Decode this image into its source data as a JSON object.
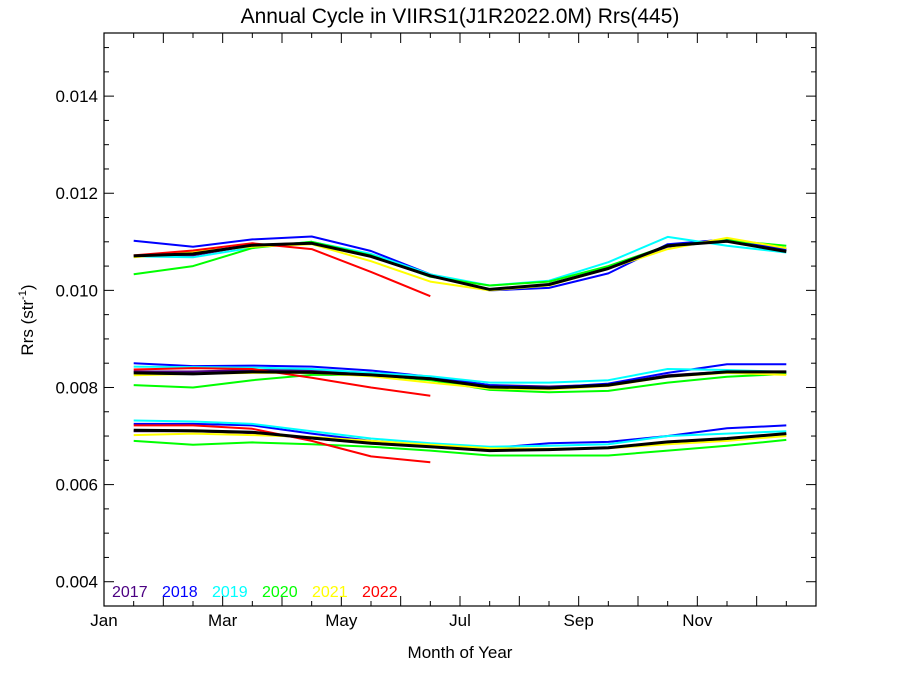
{
  "chart_data": {
    "type": "line",
    "title": "Annual Cycle in VIIRS1(J1R2022.0M) Rrs(445)",
    "xlabel": "Month of Year",
    "ylabel": "Rrs (str",
    "ylabel_sup": "-1",
    "ylabel_close": ")",
    "xlim": [
      1,
      13
    ],
    "ylim": [
      0.0035,
      0.0153
    ],
    "x_ticks": [
      {
        "value": 1,
        "label": "Jan"
      },
      {
        "value": 3,
        "label": "Mar"
      },
      {
        "value": 5,
        "label": "May"
      },
      {
        "value": 7,
        "label": "Jul"
      },
      {
        "value": 9,
        "label": "Sep"
      },
      {
        "value": 11,
        "label": "Nov"
      }
    ],
    "y_ticks": [
      {
        "value": 0.004,
        "label": "0.004"
      },
      {
        "value": 0.006,
        "label": "0.006"
      },
      {
        "value": 0.008,
        "label": "0.008"
      },
      {
        "value": 0.01,
        "label": "0.010"
      },
      {
        "value": 0.012,
        "label": "0.012"
      },
      {
        "value": 0.014,
        "label": "0.014"
      }
    ],
    "grid": false,
    "legend_position": "bottom-left",
    "x": [
      1.5,
      2.5,
      3.5,
      4.5,
      5.5,
      6.5,
      7.5,
      8.5,
      9.5,
      10.5,
      11.5,
      12.5
    ],
    "series": [
      {
        "name": "2017",
        "color": "#4b0082",
        "group": "upper",
        "values": [
          0.0107,
          0.01072,
          0.01093,
          0.01098,
          0.0107,
          0.0103,
          0.01002,
          0.01012,
          0.01045,
          0.0109,
          0.01102,
          0.01083
        ]
      },
      {
        "name": "2018",
        "color": "#0000ff",
        "group": "upper",
        "values": [
          0.01102,
          0.0109,
          0.01105,
          0.01111,
          0.01081,
          0.01033,
          0.01,
          0.01005,
          0.01035,
          0.01095,
          0.01105,
          0.01085
        ]
      },
      {
        "name": "2019",
        "color": "#00ffff",
        "group": "upper",
        "values": [
          0.0107,
          0.01068,
          0.01088,
          0.011,
          0.01075,
          0.01033,
          0.0101,
          0.0102,
          0.01058,
          0.0111,
          0.01092,
          0.01078
        ]
      },
      {
        "name": "2020",
        "color": "#00ff00",
        "group": "upper",
        "values": [
          0.01033,
          0.0105,
          0.01087,
          0.011,
          0.01072,
          0.01028,
          0.0101,
          0.01018,
          0.0105,
          0.01092,
          0.01103,
          0.01092
        ]
      },
      {
        "name": "2021",
        "color": "#ffff00",
        "group": "upper",
        "values": [
          0.01068,
          0.0108,
          0.0109,
          0.01095,
          0.0106,
          0.01018,
          0.01,
          0.0101,
          0.01045,
          0.01085,
          0.01108,
          0.01087
        ]
      },
      {
        "name": "2022",
        "color": "#ff0000",
        "group": "upper",
        "values": [
          0.01072,
          0.01082,
          0.01097,
          0.01085,
          0.01038,
          0.00988,
          null,
          null,
          null,
          null,
          null,
          null
        ]
      },
      {
        "name": "",
        "color": "#000000",
        "group": "upper-mean",
        "thick": true,
        "values": [
          0.01071,
          0.01075,
          0.01093,
          0.01097,
          0.0107,
          0.0103,
          0.01002,
          0.01012,
          0.01045,
          0.01092,
          0.01101,
          0.0108
        ]
      },
      {
        "name": "2017",
        "color": "#4b0082",
        "group": "middle",
        "values": [
          0.00833,
          0.00833,
          0.00836,
          0.00835,
          0.0083,
          0.00822,
          0.00805,
          0.00802,
          0.00806,
          0.00825,
          0.00833,
          0.00832
        ]
      },
      {
        "name": "2018",
        "color": "#0000ff",
        "group": "middle",
        "values": [
          0.0085,
          0.00844,
          0.00845,
          0.00843,
          0.00835,
          0.00822,
          0.00805,
          0.008,
          0.00808,
          0.0083,
          0.00848,
          0.00848
        ]
      },
      {
        "name": "2019",
        "color": "#00ffff",
        "group": "middle",
        "values": [
          0.00843,
          0.00842,
          0.00841,
          0.00838,
          0.0083,
          0.00823,
          0.0081,
          0.0081,
          0.00815,
          0.00838,
          0.00836,
          0.00832
        ]
      },
      {
        "name": "2020",
        "color": "#00ff00",
        "group": "middle",
        "values": [
          0.00805,
          0.008,
          0.00815,
          0.00826,
          0.00826,
          0.00815,
          0.00795,
          0.0079,
          0.00793,
          0.0081,
          0.00822,
          0.00828
        ]
      },
      {
        "name": "2021",
        "color": "#ffff00",
        "group": "middle",
        "values": [
          0.00825,
          0.00828,
          0.0083,
          0.0083,
          0.00823,
          0.0081,
          0.00798,
          0.00796,
          0.00803,
          0.00822,
          0.0083,
          0.00826
        ]
      },
      {
        "name": "2022",
        "color": "#ff0000",
        "group": "middle",
        "values": [
          0.00837,
          0.0084,
          0.00838,
          0.0082,
          0.008,
          0.00783,
          null,
          null,
          null,
          null,
          null,
          null
        ]
      },
      {
        "name": "",
        "color": "#000000",
        "group": "middle-mean",
        "thick": true,
        "values": [
          0.0083,
          0.00828,
          0.00832,
          0.00831,
          0.00826,
          0.00818,
          0.00801,
          0.00799,
          0.00805,
          0.00823,
          0.00832,
          0.00832
        ]
      },
      {
        "name": "2017",
        "color": "#4b0082",
        "group": "lower",
        "values": [
          0.0071,
          0.0071,
          0.00706,
          0.00695,
          0.00685,
          0.00678,
          0.0067,
          0.00673,
          0.00676,
          0.00686,
          0.00694,
          0.00704
        ]
      },
      {
        "name": "2018",
        "color": "#0000ff",
        "group": "lower",
        "values": [
          0.00725,
          0.00725,
          0.00722,
          0.00705,
          0.0069,
          0.0068,
          0.00675,
          0.00685,
          0.00688,
          0.007,
          0.00716,
          0.00722
        ]
      },
      {
        "name": "2019",
        "color": "#00ffff",
        "group": "lower",
        "values": [
          0.00732,
          0.0073,
          0.00725,
          0.0071,
          0.00695,
          0.00685,
          0.00678,
          0.0068,
          0.00683,
          0.007,
          0.00705,
          0.0071
        ]
      },
      {
        "name": "2020",
        "color": "#00ff00",
        "group": "lower",
        "values": [
          0.0069,
          0.00682,
          0.00687,
          0.00683,
          0.00678,
          0.0067,
          0.0066,
          0.0066,
          0.0066,
          0.0067,
          0.0068,
          0.00692
        ]
      },
      {
        "name": "2021",
        "color": "#ffff00",
        "group": "lower",
        "values": [
          0.00702,
          0.00705,
          0.00702,
          0.00698,
          0.0069,
          0.00682,
          0.00675,
          0.00674,
          0.00675,
          0.00683,
          0.0069,
          0.007
        ]
      },
      {
        "name": "2022",
        "color": "#ff0000",
        "group": "lower",
        "values": [
          0.00722,
          0.00722,
          0.00715,
          0.0069,
          0.00658,
          0.00646,
          null,
          null,
          null,
          null,
          null,
          null
        ]
      },
      {
        "name": "",
        "color": "#000000",
        "group": "lower-mean",
        "thick": true,
        "values": [
          0.00712,
          0.00711,
          0.00708,
          0.00696,
          0.00685,
          0.00678,
          0.0067,
          0.00672,
          0.00676,
          0.00688,
          0.00695,
          0.00705
        ]
      }
    ],
    "legend": [
      {
        "label": "2017",
        "color": "#4b0082"
      },
      {
        "label": "2018",
        "color": "#0000ff"
      },
      {
        "label": "2019",
        "color": "#00ffff"
      },
      {
        "label": "2020",
        "color": "#00ff00"
      },
      {
        "label": "2021",
        "color": "#ffff00"
      },
      {
        "label": "2022",
        "color": "#ff0000"
      }
    ]
  }
}
